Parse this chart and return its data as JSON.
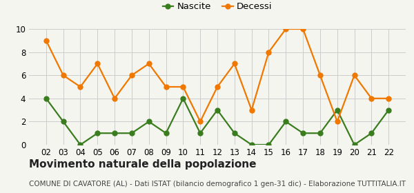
{
  "years": [
    "02",
    "03",
    "04",
    "05",
    "06",
    "07",
    "08",
    "09",
    "10",
    "11",
    "12",
    "13",
    "14",
    "15",
    "16",
    "17",
    "18",
    "19",
    "20",
    "21",
    "22"
  ],
  "nascite": [
    4,
    2,
    0,
    1,
    1,
    1,
    2,
    1,
    4,
    1,
    3,
    1,
    0,
    0,
    2,
    1,
    1,
    3,
    0,
    1,
    3
  ],
  "decessi": [
    9,
    6,
    5,
    7,
    4,
    6,
    7,
    5,
    5,
    2,
    5,
    7,
    3,
    8,
    10,
    10,
    6,
    2,
    6,
    4,
    4
  ],
  "nascite_color": "#3a7d1e",
  "decessi_color": "#f07800",
  "background_color": "#f5f5f0",
  "grid_color": "#cccccc",
  "ylim": [
    0,
    10
  ],
  "yticks": [
    0,
    2,
    4,
    6,
    8,
    10
  ],
  "title": "Movimento naturale della popolazione",
  "subtitle": "COMUNE DI CAVATORE (AL) - Dati ISTAT (bilancio demografico 1 gen-31 dic) - Elaborazione TUTTITALIA.IT",
  "legend_labels": [
    "Nascite",
    "Decessi"
  ],
  "title_fontsize": 11,
  "subtitle_fontsize": 7.5,
  "tick_fontsize": 8.5,
  "legend_fontsize": 9.5,
  "marker_size": 5,
  "line_width": 1.6
}
